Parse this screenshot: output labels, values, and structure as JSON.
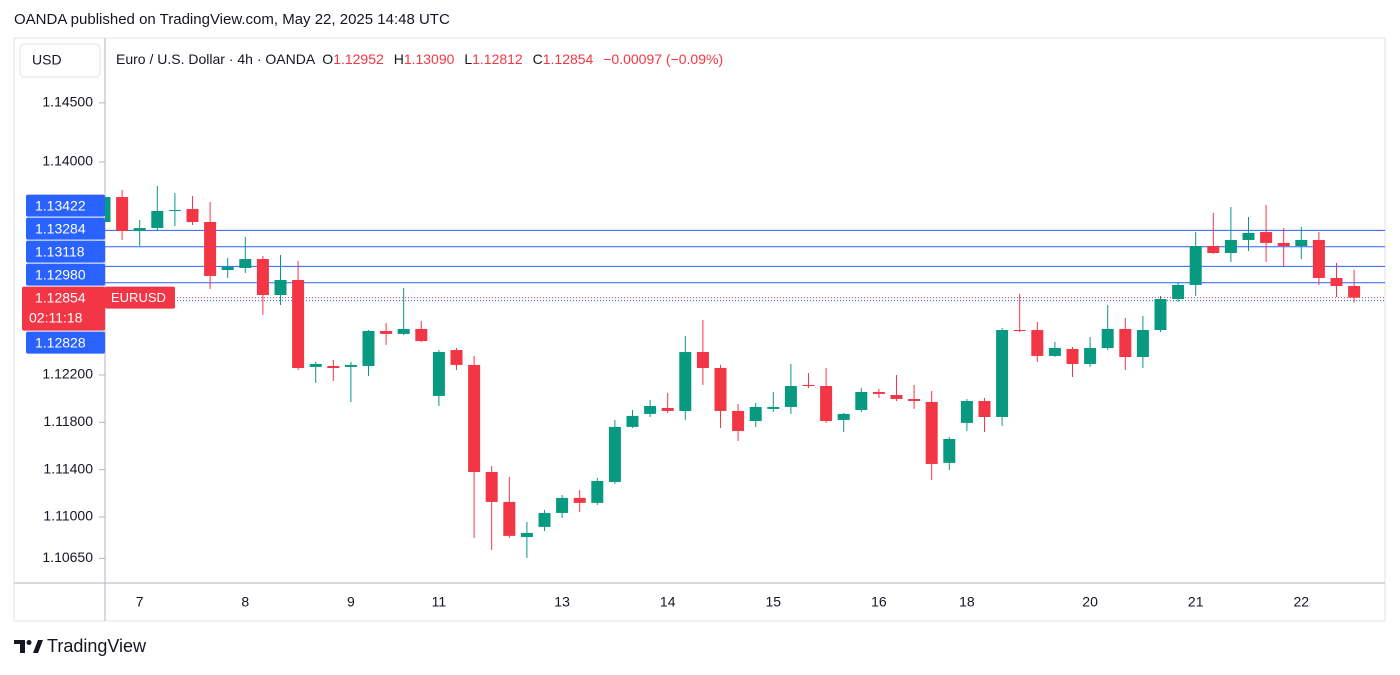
{
  "header": {
    "title": "OANDA published on TradingView.com, May 22, 2025 14:48 UTC"
  },
  "footer": {
    "brand": "TradingView"
  },
  "chart_data": {
    "type": "candlestick",
    "currency": "USD",
    "legend": {
      "symbol": "Euro / U.S. Dollar · 4h · OANDA",
      "open_label": "O",
      "open": "1.12952",
      "high_label": "H",
      "high": "1.13090",
      "low_label": "L",
      "low": "1.12812",
      "close_label": "C",
      "close": "1.12854",
      "change": "−0.00097 (−0.09%)"
    },
    "up_color": "#089981",
    "down_color": "#f23645",
    "level_color": "#2962ff",
    "categories": [
      null,
      null,
      "7",
      null,
      null,
      null,
      null,
      null,
      "8",
      null,
      null,
      null,
      null,
      null,
      "9",
      null,
      null,
      null,
      null,
      "11",
      null,
      null,
      null,
      null,
      null,
      null,
      "13",
      null,
      null,
      null,
      null,
      null,
      "14",
      null,
      null,
      null,
      null,
      null,
      "15",
      null,
      null,
      null,
      null,
      null,
      "16",
      null,
      null,
      null,
      null,
      "18",
      null,
      null,
      null,
      null,
      null,
      null,
      "20",
      null,
      null,
      null,
      null,
      null,
      "21",
      null,
      null,
      null,
      null,
      null,
      "22",
      null,
      null,
      null
    ],
    "open": [
      1.13493,
      1.13704,
      1.13417,
      1.13442,
      1.13586,
      1.13603,
      1.13493,
      1.13087,
      1.13104,
      1.1318,
      1.12876,
      1.13003,
      1.12268,
      1.12276,
      1.12268,
      1.12276,
      1.12572,
      1.12547,
      1.12589,
      1.12023,
      1.12411,
      1.12285,
      1.1138,
      1.11127,
      1.10831,
      1.10916,
      1.11034,
      1.11161,
      1.11119,
      1.11296,
      1.11761,
      1.11871,
      1.11921,
      1.11896,
      1.12394,
      1.12259,
      1.11896,
      1.11811,
      1.11913,
      1.1193,
      1.12116,
      1.12107,
      1.1182,
      1.11904,
      1.12056,
      1.12031,
      1.11997,
      1.11972,
      1.11457,
      1.11795,
      1.1198,
      1.11845,
      1.1258,
      1.1258,
      1.12361,
      1.1242,
      1.12293,
      1.12428,
      1.12589,
      1.12352,
      1.1258,
      1.12842,
      1.12961,
      1.1329,
      1.13231,
      1.13341,
      1.13408,
      1.13316,
      1.1329,
      1.13341,
      1.1302,
      1.12952
    ],
    "high": [
      1.13763,
      1.13763,
      1.1351,
      1.13797,
      1.13738,
      1.13713,
      1.13662,
      1.13189,
      1.13366,
      1.13206,
      1.13214,
      1.13163,
      1.1231,
      1.12327,
      1.1231,
      1.1258,
      1.1264,
      1.12935,
      1.12656,
      1.12411,
      1.12428,
      1.12361,
      1.11431,
      1.11338,
      1.10958,
      1.11059,
      1.11186,
      1.11228,
      1.1133,
      1.1182,
      1.11904,
      1.11989,
      1.12048,
      1.1253,
      1.12665,
      1.12285,
      1.11955,
      1.11964,
      1.12056,
      1.12293,
      1.12217,
      1.12259,
      1.11879,
      1.1209,
      1.12082,
      1.122,
      1.12116,
      1.12065,
      1.11676,
      1.11997,
      1.12006,
      1.12597,
      1.12885,
      1.12648,
      1.12479,
      1.12437,
      1.12521,
      1.12792,
      1.12682,
      1.12699,
      1.12868,
      1.12986,
      1.13408,
      1.13569,
      1.1362,
      1.13535,
      1.13637,
      1.13442,
      1.13451,
      1.13408,
      1.13147,
      1.1309
    ],
    "low": [
      1.13468,
      1.13341,
      1.1329,
      1.13425,
      1.13459,
      1.13468,
      1.12927,
      1.1302,
      1.13062,
      1.12707,
      1.12792,
      1.12242,
      1.12133,
      1.12149,
      1.11972,
      1.12192,
      1.12454,
      1.12538,
      1.12479,
      1.11938,
      1.12242,
      1.10823,
      1.10721,
      1.10823,
      1.10654,
      1.10882,
      1.10992,
      1.11042,
      1.11102,
      1.11279,
      1.11752,
      1.11845,
      1.11879,
      1.1182,
      1.12116,
      1.11752,
      1.11642,
      1.11761,
      1.11887,
      1.11871,
      1.1209,
      1.11795,
      1.11718,
      1.11887,
      1.12006,
      1.1198,
      1.11913,
      1.11313,
      1.11397,
      1.11727,
      1.11718,
      1.11769,
      1.12563,
      1.1231,
      1.12352,
      1.12183,
      1.12268,
      1.12411,
      1.12242,
      1.12259,
      1.12563,
      1.12817,
      1.12868,
      1.13223,
      1.13155,
      1.13248,
      1.13155,
      1.13121,
      1.1318,
      1.12961,
      1.12859,
      1.12812
    ],
    "close": [
      1.13704,
      1.13417,
      1.13442,
      1.13586,
      1.13594,
      1.13493,
      1.13037,
      1.13113,
      1.1318,
      1.12876,
      1.13003,
      1.12259,
      1.12293,
      1.12259,
      1.12285,
      1.12572,
      1.12547,
      1.12589,
      1.12487,
      1.12394,
      1.12285,
      1.1138,
      1.11127,
      1.1084,
      1.10865,
      1.11034,
      1.11161,
      1.11119,
      1.11304,
      1.11761,
      1.11854,
      1.11938,
      1.11896,
      1.12394,
      1.12259,
      1.11896,
      1.11727,
      1.1193,
      1.1193,
      1.12107,
      1.12107,
      1.11811,
      1.11871,
      1.12056,
      1.1204,
      1.11997,
      1.1198,
      1.11448,
      1.11659,
      1.1198,
      1.11845,
      1.1258,
      1.12572,
      1.12361,
      1.12428,
      1.12293,
      1.12428,
      1.12589,
      1.12352,
      1.1258,
      1.12842,
      1.12961,
      1.1329,
      1.13231,
      1.13341,
      1.134,
      1.13316,
      1.1329,
      1.13341,
      1.1302,
      1.12952,
      1.12854
    ],
    "ylim": [
      1.10442,
      1.15048
    ],
    "yticks": [
      {
        "value": 1.145,
        "label": "1.14500"
      },
      {
        "value": 1.14,
        "label": "1.14000"
      },
      {
        "value": 1.122,
        "label": "1.12200"
      },
      {
        "value": 1.118,
        "label": "1.11800"
      },
      {
        "value": 1.114,
        "label": "1.11400"
      },
      {
        "value": 1.11,
        "label": "1.11000"
      },
      {
        "value": 1.1065,
        "label": "1.10650"
      }
    ],
    "grid": false,
    "levels": [
      1.13422,
      1.13284,
      1.13118,
      {
        "value": 1.1298,
        "label": "1.12980"
      },
      1.12828
    ],
    "current_price": 1.12854,
    "current_symbol": "EURUSD",
    "countdown": "02:11:18"
  }
}
